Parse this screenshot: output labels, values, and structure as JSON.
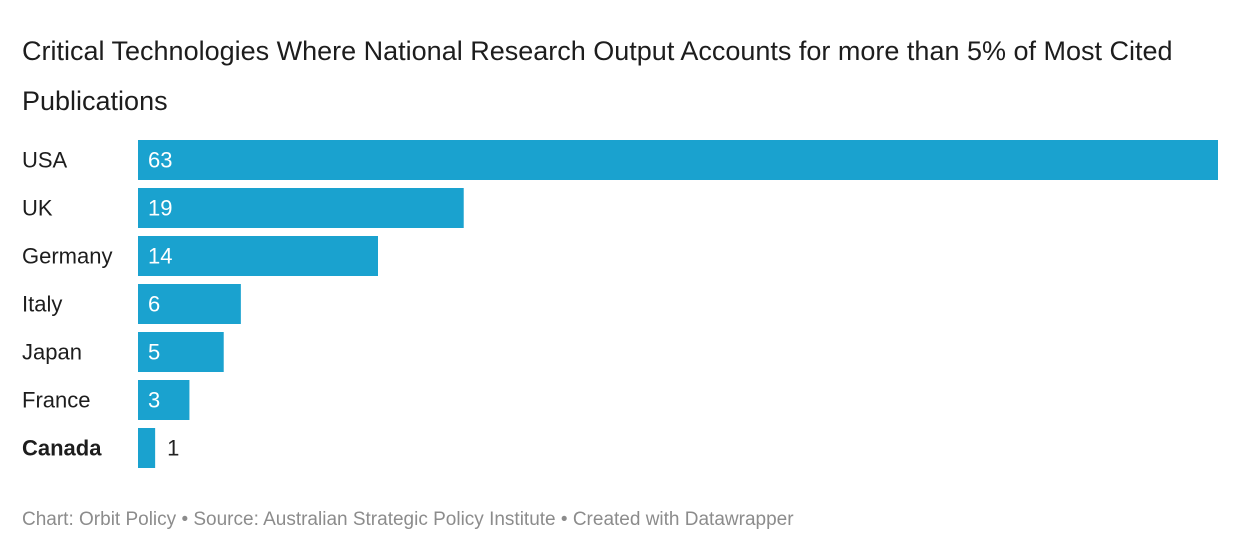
{
  "chart_data": {
    "type": "bar",
    "orientation": "horizontal",
    "title": "Critical Technologies Where National Research Output Accounts for more than 5% of Most Cited Publications",
    "categories": [
      "USA",
      "UK",
      "Germany",
      "Italy",
      "Japan",
      "France",
      "Canada"
    ],
    "values": [
      63,
      19,
      14,
      6,
      5,
      3,
      1
    ],
    "highlighted_category": "Canada",
    "xlim": [
      0,
      63
    ],
    "grid": false,
    "legend": "none",
    "bar_color": "#1aa2cf",
    "label_inside_color": "#ffffff",
    "label_outside_color": "#222222"
  },
  "footer": {
    "chart_by": "Chart: Orbit Policy",
    "separator": "•",
    "source": "Source: Australian Strategic Policy Institute",
    "created_with": "Created with Datawrapper"
  }
}
